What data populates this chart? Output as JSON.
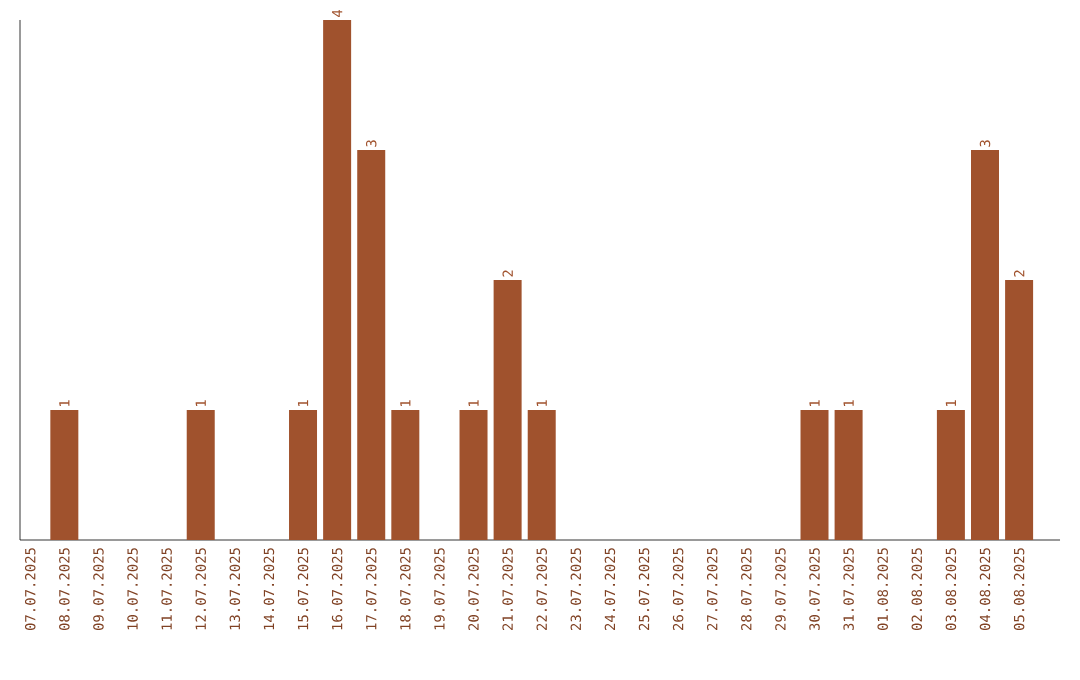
{
  "chart_data": {
    "type": "bar",
    "color": "#a0522d",
    "data_labels": false,
    "categories": [
      "07.07.2025",
      "08.07.2025",
      "09.07.2025",
      "10.07.2025",
      "11.07.2025",
      "12.07.2025",
      "13.07.2025",
      "14.07.2025",
      "15.07.2025",
      "16.07.2025",
      "17.07.2025",
      "18.07.2025",
      "19.07.2025",
      "20.07.2025",
      "21.07.2025",
      "22.07.2025",
      "23.07.2025",
      "24.07.2025",
      "25.07.2025",
      "26.07.2025",
      "27.07.2025",
      "28.07.2025",
      "29.07.2025",
      "30.07.2025",
      "31.07.2025",
      "01.08.2025",
      "02.08.2025",
      "03.08.2025",
      "04.08.2025",
      "05.08.2025"
    ],
    "values": [
      0,
      1,
      0,
      0,
      0,
      1,
      0,
      0,
      1,
      4,
      3,
      1,
      0,
      1,
      2,
      1,
      0,
      0,
      0,
      0,
      0,
      0,
      0,
      1,
      1,
      0,
      0,
      1,
      3,
      2
    ],
    "value_labels": [
      null,
      "1",
      null,
      null,
      null,
      "1",
      null,
      null,
      "1",
      "4",
      "3",
      "1",
      null,
      "1",
      "2",
      "1",
      null,
      null,
      null,
      null,
      null,
      null,
      null,
      "1",
      "1",
      null,
      null,
      "1",
      "3",
      "2"
    ],
    "tick_labels": "x"
  }
}
